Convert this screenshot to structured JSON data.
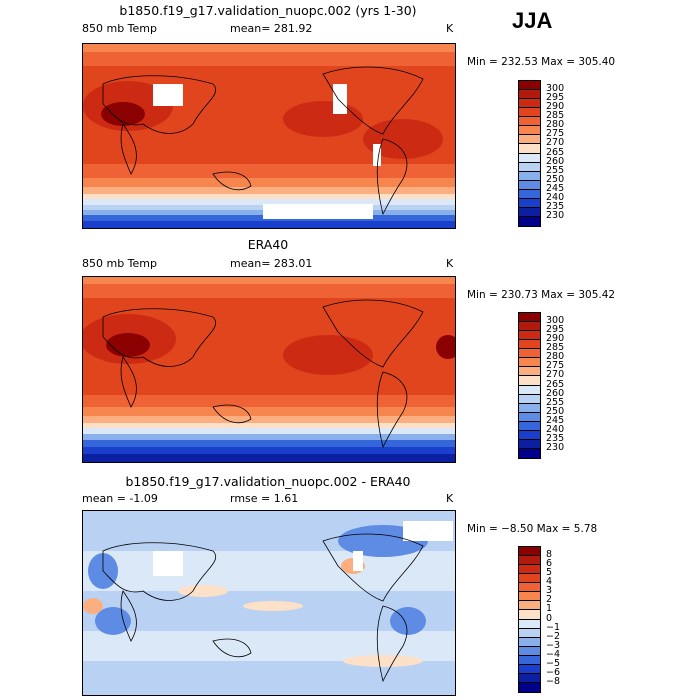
{
  "season": "JJA",
  "panels": [
    {
      "title": "b1850.f19_g17.validation_nuopc.002 (yrs 1-30)",
      "left_label": "850 mb Temp",
      "center_label": "mean= 281.92",
      "units": "K",
      "minmax": "Min = 232.53 Max = 305.40",
      "colorbar": {
        "labels": [
          "300",
          "295",
          "290",
          "285",
          "280",
          "275",
          "270",
          "265",
          "260",
          "255",
          "250",
          "245",
          "240",
          "235",
          "230"
        ],
        "colors": [
          "#8b0000",
          "#b01a0f",
          "#cc2a12",
          "#e0451e",
          "#ee6235",
          "#f7864e",
          "#fbaf80",
          "#fde0c8",
          "#dbe8f8",
          "#b9d1f3",
          "#8ab0ec",
          "#5e8ce5",
          "#3567db",
          "#1a3fcc",
          "#0b1fa0",
          "#00008b"
        ]
      }
    },
    {
      "title": "ERA40",
      "left_label": "850 mb Temp",
      "center_label": "mean= 283.01",
      "units": "K",
      "minmax": "Min = 230.73 Max = 305.42",
      "colorbar": {
        "labels": [
          "300",
          "295",
          "290",
          "285",
          "280",
          "275",
          "270",
          "265",
          "260",
          "255",
          "250",
          "245",
          "240",
          "235",
          "230"
        ],
        "colors": [
          "#8b0000",
          "#b01a0f",
          "#cc2a12",
          "#e0451e",
          "#ee6235",
          "#f7864e",
          "#fbaf80",
          "#fde0c8",
          "#dbe8f8",
          "#b9d1f3",
          "#8ab0ec",
          "#5e8ce5",
          "#3567db",
          "#1a3fcc",
          "#0b1fa0",
          "#00008b"
        ]
      }
    },
    {
      "title": "b1850.f19_g17.validation_nuopc.002 - ERA40",
      "left_label": "mean =   -1.09",
      "center_label": "rmse =    1.61",
      "units": "K",
      "minmax": "Min =  −8.50 Max =   5.78",
      "colorbar": {
        "labels": [
          "8",
          "6",
          "5",
          "4",
          "3",
          "2",
          "1",
          "0",
          "−1",
          "−2",
          "−3",
          "−4",
          "−5",
          "−6",
          "−8"
        ],
        "colors": [
          "#8b0000",
          "#b01a0f",
          "#cc2a12",
          "#e0451e",
          "#ee6235",
          "#f7864e",
          "#fbaf80",
          "#fde0c8",
          "#dbe8f8",
          "#b9d1f3",
          "#8ab0ec",
          "#5e8ce5",
          "#3567db",
          "#1a3fcc",
          "#0b1fa0",
          "#00008b"
        ]
      }
    }
  ],
  "chart_data": [
    {
      "type": "heatmap",
      "title": "b1850.f19_g17.validation_nuopc.002 (yrs 1-30)",
      "variable": "850 mb Temp",
      "season": "JJA",
      "units": "K",
      "mean": 281.92,
      "min": 232.53,
      "max": 305.4,
      "contour_levels": [
        230,
        235,
        240,
        245,
        250,
        255,
        260,
        265,
        270,
        275,
        280,
        285,
        290,
        295,
        300
      ]
    },
    {
      "type": "heatmap",
      "title": "ERA40",
      "variable": "850 mb Temp",
      "season": "JJA",
      "units": "K",
      "mean": 283.01,
      "min": 230.73,
      "max": 305.42,
      "contour_levels": [
        230,
        235,
        240,
        245,
        250,
        255,
        260,
        265,
        270,
        275,
        280,
        285,
        290,
        295,
        300
      ]
    },
    {
      "type": "heatmap",
      "title": "b1850.f19_g17.validation_nuopc.002 - ERA40",
      "variable": "850 mb Temp",
      "season": "JJA",
      "units": "K",
      "mean": -1.09,
      "rmse": 1.61,
      "min": -8.5,
      "max": 5.78,
      "contour_levels": [
        -8,
        -6,
        -5,
        -4,
        -3,
        -2,
        -1,
        0,
        1,
        2,
        3,
        4,
        5,
        6,
        8
      ]
    }
  ]
}
